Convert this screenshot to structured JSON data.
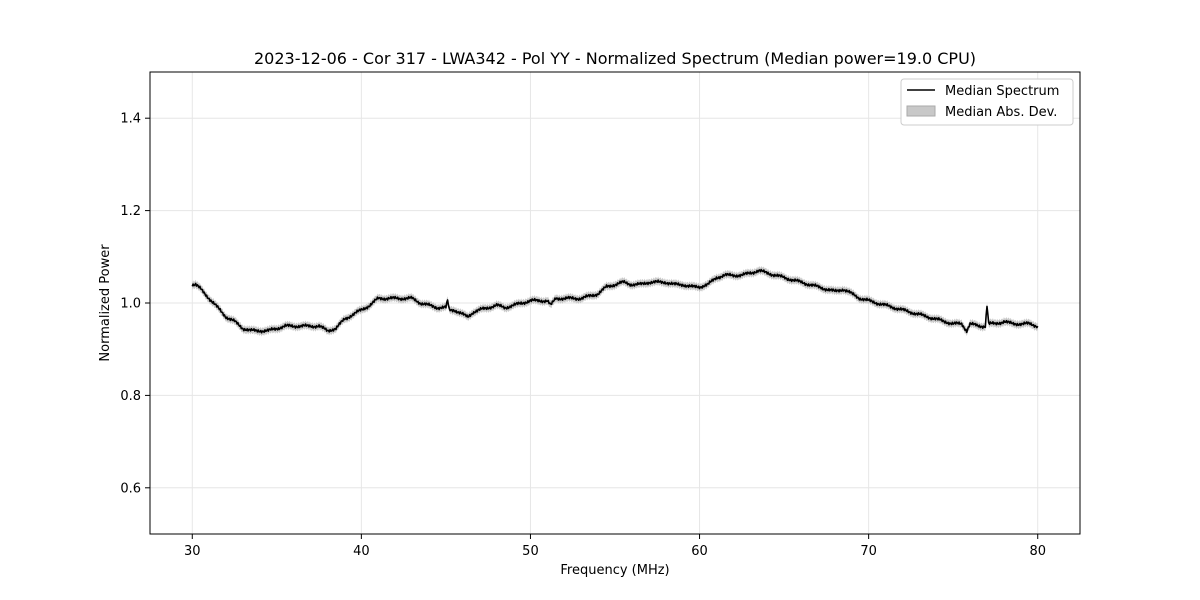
{
  "chart_data": {
    "type": "line",
    "title": "2023-12-06 - Cor 317 - LWA342 - Pol YY - Normalized Spectrum (Median power=19.0 CPU)",
    "xlabel": "Frequency (MHz)",
    "ylabel": "Normalized Power",
    "xlim": [
      27.5,
      82.5
    ],
    "ylim": [
      0.5,
      1.5
    ],
    "xticks": [
      30,
      40,
      50,
      60,
      70,
      80
    ],
    "yticks": [
      0.6,
      0.8,
      1.0,
      1.2,
      1.4
    ],
    "xtick_labels": [
      "30",
      "40",
      "50",
      "60",
      "70",
      "80"
    ],
    "ytick_labels": [
      "0.6",
      "0.8",
      "1.0",
      "1.2",
      "1.4"
    ],
    "grid": true,
    "legend": {
      "placement": "top-right",
      "entries": [
        "Median Spectrum",
        "Median Abs. Dev."
      ]
    },
    "series": [
      {
        "name": "Median Spectrum",
        "color": "#000000",
        "mad": 0.008,
        "x": [
          30.0,
          30.2,
          30.5,
          31.0,
          31.5,
          32.0,
          32.5,
          33.0,
          33.5,
          34.0,
          34.5,
          35.0,
          35.5,
          36.0,
          36.5,
          37.0,
          37.5,
          38.0,
          38.5,
          39.0,
          39.5,
          40.0,
          40.5,
          41.0,
          41.5,
          42.0,
          42.5,
          43.0,
          43.5,
          44.0,
          44.5,
          45.0,
          45.1,
          45.2,
          45.5,
          46.0,
          46.3,
          46.6,
          47.0,
          47.5,
          48.0,
          48.5,
          49.0,
          49.5,
          50.0,
          50.5,
          51.0,
          51.2,
          51.5,
          52.0,
          52.5,
          53.0,
          53.5,
          54.0,
          54.5,
          55.0,
          55.5,
          56.0,
          56.5,
          57.0,
          57.5,
          58.0,
          58.5,
          59.0,
          59.5,
          60.0,
          60.5,
          61.0,
          61.5,
          62.0,
          62.5,
          63.0,
          63.5,
          64.0,
          64.5,
          65.0,
          65.5,
          66.0,
          66.5,
          67.0,
          67.5,
          68.0,
          68.5,
          69.0,
          69.5,
          70.0,
          70.5,
          71.0,
          71.5,
          72.0,
          72.5,
          73.0,
          73.5,
          74.0,
          74.5,
          75.0,
          75.5,
          75.8,
          76.0,
          76.5,
          76.9,
          77.0,
          77.1,
          77.5,
          78.0,
          78.5,
          79.0,
          79.5,
          80.0
        ],
        "values": [
          1.04,
          1.04,
          1.03,
          1.01,
          0.99,
          0.97,
          0.96,
          0.945,
          0.94,
          0.94,
          0.94,
          0.945,
          0.95,
          0.95,
          0.95,
          0.95,
          0.95,
          0.94,
          0.945,
          0.965,
          0.975,
          0.985,
          0.995,
          1.01,
          1.01,
          1.01,
          1.01,
          1.01,
          1.0,
          0.995,
          0.99,
          0.99,
          1.005,
          0.985,
          0.985,
          0.975,
          0.97,
          0.98,
          0.985,
          0.99,
          0.995,
          0.99,
          0.995,
          1.0,
          1.005,
          1.005,
          1.005,
          0.995,
          1.01,
          1.01,
          1.01,
          1.01,
          1.015,
          1.02,
          1.035,
          1.04,
          1.045,
          1.04,
          1.04,
          1.045,
          1.045,
          1.045,
          1.04,
          1.04,
          1.035,
          1.035,
          1.04,
          1.055,
          1.06,
          1.06,
          1.06,
          1.065,
          1.07,
          1.065,
          1.06,
          1.055,
          1.05,
          1.045,
          1.04,
          1.035,
          1.03,
          1.025,
          1.03,
          1.02,
          1.01,
          1.005,
          1.0,
          0.995,
          0.99,
          0.985,
          0.98,
          0.975,
          0.97,
          0.965,
          0.96,
          0.955,
          0.955,
          0.94,
          0.955,
          0.95,
          0.95,
          0.995,
          0.955,
          0.955,
          0.96,
          0.955,
          0.955,
          0.955,
          0.95
        ]
      }
    ]
  }
}
